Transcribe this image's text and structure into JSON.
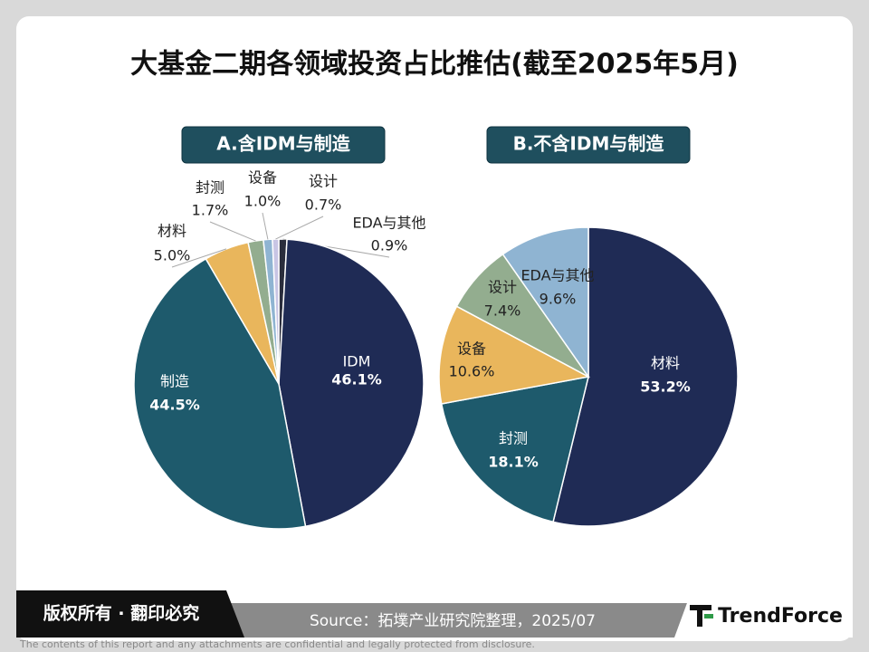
{
  "title": "大基金二期各领域投资占比推估(截至2025年5月)",
  "chart_data": [
    {
      "type": "pie",
      "title": "A.含IDM与制造",
      "categories": [
        "EDA与其他",
        "IDM",
        "制造",
        "材料",
        "封测",
        "设备",
        "设计"
      ],
      "values": [
        0.9,
        46.1,
        44.5,
        5.0,
        1.7,
        1.0,
        0.7
      ],
      "value_labels": [
        "0.9%",
        "46.1%",
        "44.5%",
        "5.0%",
        "1.7%",
        "1.0%",
        "0.7%"
      ],
      "colors": [
        "#2a2d3c",
        "#1f2b55",
        "#1e5a6c",
        "#e9b65c",
        "#93ad8f",
        "#8fb4d2",
        "#c8c5e4"
      ]
    },
    {
      "type": "pie",
      "title": "B.不含IDM与制造",
      "categories": [
        "材料",
        "封测",
        "设备",
        "设计",
        "EDA与其他"
      ],
      "values": [
        53.2,
        18.1,
        10.6,
        7.4,
        9.6
      ],
      "value_labels": [
        "53.2%",
        "18.1%",
        "10.6%",
        "7.4%",
        "9.6%"
      ],
      "colors": [
        "#1f2b55",
        "#1e5a6c",
        "#e9b65c",
        "#93ad8f",
        "#8fb4d2"
      ]
    }
  ],
  "footer": {
    "copyright": "版权所有 · 翻印必究",
    "source": "Source：拓墣产业研究院整理，2025/07",
    "logo": "TrendForce",
    "disclaimer": "The contents of this report and any attachments are confidential and legally protected from disclosure."
  }
}
